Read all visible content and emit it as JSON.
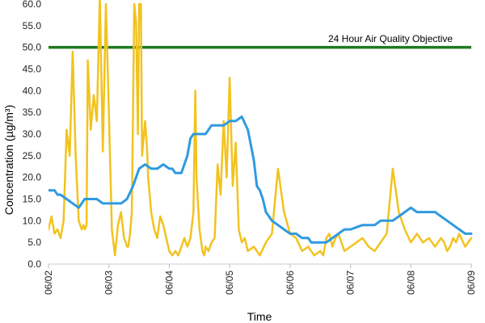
{
  "chart_data": {
    "type": "line",
    "xlabel": "Time",
    "ylabel": "Concentration (µg/m³)",
    "ylim": [
      0,
      60
    ],
    "y_ticks": [
      "0.0",
      "5.0",
      "10.0",
      "15.0",
      "20.0",
      "25.0",
      "30.0",
      "35.0",
      "40.0",
      "45.0",
      "50.0",
      "55.0",
      "60.0"
    ],
    "x_ticks": [
      "06/02",
      "06/03",
      "06/04",
      "06/05",
      "06/06",
      "06/07",
      "06/08",
      "06/09"
    ],
    "x_unit": "days from 06/02",
    "grid": false,
    "reference_line": {
      "label": "24 Hour Air Quality Objective",
      "value": 50,
      "color": "#1e7a1e"
    },
    "series": [
      {
        "color": "#f2c31f",
        "x": [
          0,
          0.05,
          0.1,
          0.15,
          0.2,
          0.25,
          0.3,
          0.35,
          0.4,
          0.45,
          0.5,
          0.55,
          0.58,
          0.6,
          0.63,
          0.65,
          0.7,
          0.75,
          0.8,
          0.85,
          0.9,
          0.95,
          1.0,
          1.05,
          1.1,
          1.15,
          1.2,
          1.25,
          1.28,
          1.3,
          1.32,
          1.35,
          1.38,
          1.42,
          1.45,
          1.48,
          1.5,
          1.53,
          1.55,
          1.6,
          1.63,
          1.65,
          1.7,
          1.75,
          1.8,
          1.85,
          1.9,
          1.95,
          2.0,
          2.05,
          2.1,
          2.15,
          2.2,
          2.25,
          2.3,
          2.35,
          2.4,
          2.43,
          2.45,
          2.5,
          2.55,
          2.58,
          2.6,
          2.65,
          2.7,
          2.75,
          2.8,
          2.85,
          2.9,
          2.95,
          3.0,
          3.05,
          3.1,
          3.15,
          3.2,
          3.25,
          3.3,
          3.4,
          3.5,
          3.6,
          3.7,
          3.8,
          3.9,
          4.0,
          4.1,
          4.2,
          4.3,
          4.4,
          4.5,
          4.55,
          4.6,
          4.65,
          4.7,
          4.75,
          4.8,
          4.9,
          5.0,
          5.1,
          5.2,
          5.3,
          5.4,
          5.5,
          5.6,
          5.7,
          5.8,
          5.9,
          6.0,
          6.1,
          6.2,
          6.3,
          6.4,
          6.5,
          6.55,
          6.6,
          6.65,
          6.7,
          6.75,
          6.8,
          6.9,
          7.0
        ],
        "values": [
          8,
          11,
          7,
          8,
          6,
          10,
          31,
          25,
          49,
          25,
          10,
          8,
          9,
          8,
          9,
          47,
          31,
          39,
          33,
          62,
          26,
          60,
          35,
          8,
          2,
          9,
          12,
          6,
          5,
          4,
          4,
          7,
          12,
          60,
          56,
          30,
          60,
          60,
          25,
          33,
          27,
          20,
          12,
          8,
          6,
          11,
          9,
          6,
          3,
          2,
          3,
          2,
          4,
          6,
          4,
          6,
          12,
          40,
          20,
          8,
          3,
          2,
          4,
          3,
          5,
          6,
          23,
          16,
          33,
          20,
          43,
          18,
          28,
          8,
          5,
          6,
          3,
          4,
          2,
          5,
          7,
          22,
          12,
          7,
          6,
          3,
          4,
          2,
          3,
          2,
          6,
          7,
          4,
          6,
          7,
          3,
          4,
          5,
          6,
          4,
          3,
          5,
          7,
          22,
          12,
          8,
          5,
          7,
          5,
          6,
          4,
          6,
          5,
          3,
          4,
          6,
          5,
          7,
          4,
          6
        ]
      },
      {
        "color": "#2f9ae0",
        "x": [
          0,
          0.1,
          0.15,
          0.2,
          0.3,
          0.4,
          0.5,
          0.55,
          0.6,
          0.8,
          0.9,
          1.0,
          1.05,
          1.1,
          1.2,
          1.3,
          1.4,
          1.45,
          1.5,
          1.6,
          1.7,
          1.8,
          1.9,
          2.0,
          2.05,
          2.1,
          2.2,
          2.3,
          2.35,
          2.4,
          2.5,
          2.6,
          2.7,
          2.8,
          2.9,
          3.0,
          3.1,
          3.2,
          3.3,
          3.4,
          3.45,
          3.5,
          3.55,
          3.6,
          3.7,
          3.8,
          3.9,
          4.0,
          4.1,
          4.2,
          4.3,
          4.35,
          4.4,
          4.5,
          4.6,
          4.7,
          4.8,
          4.9,
          5.0,
          5.2,
          5.3,
          5.4,
          5.5,
          5.6,
          5.7,
          5.8,
          5.9,
          6.0,
          6.1,
          6.2,
          6.3,
          6.4,
          6.5,
          6.6,
          6.7,
          6.8,
          6.9,
          7.0
        ],
        "values": [
          17,
          17,
          16,
          16,
          15,
          14,
          13,
          14,
          15,
          15,
          14,
          14,
          14,
          14,
          14,
          15,
          18,
          20,
          22,
          23,
          22,
          22,
          23,
          22,
          22,
          21,
          21,
          25,
          29,
          30,
          30,
          30,
          32,
          32,
          32,
          33,
          33,
          34,
          31,
          24,
          18,
          17,
          15,
          12,
          10,
          9,
          8,
          7,
          7,
          6,
          6,
          5,
          5,
          5,
          5,
          6,
          7,
          8,
          8,
          9,
          9,
          9,
          10,
          10,
          10,
          11,
          12,
          13,
          12,
          12,
          12,
          12,
          11,
          10,
          9,
          8,
          7,
          7
        ]
      }
    ]
  }
}
